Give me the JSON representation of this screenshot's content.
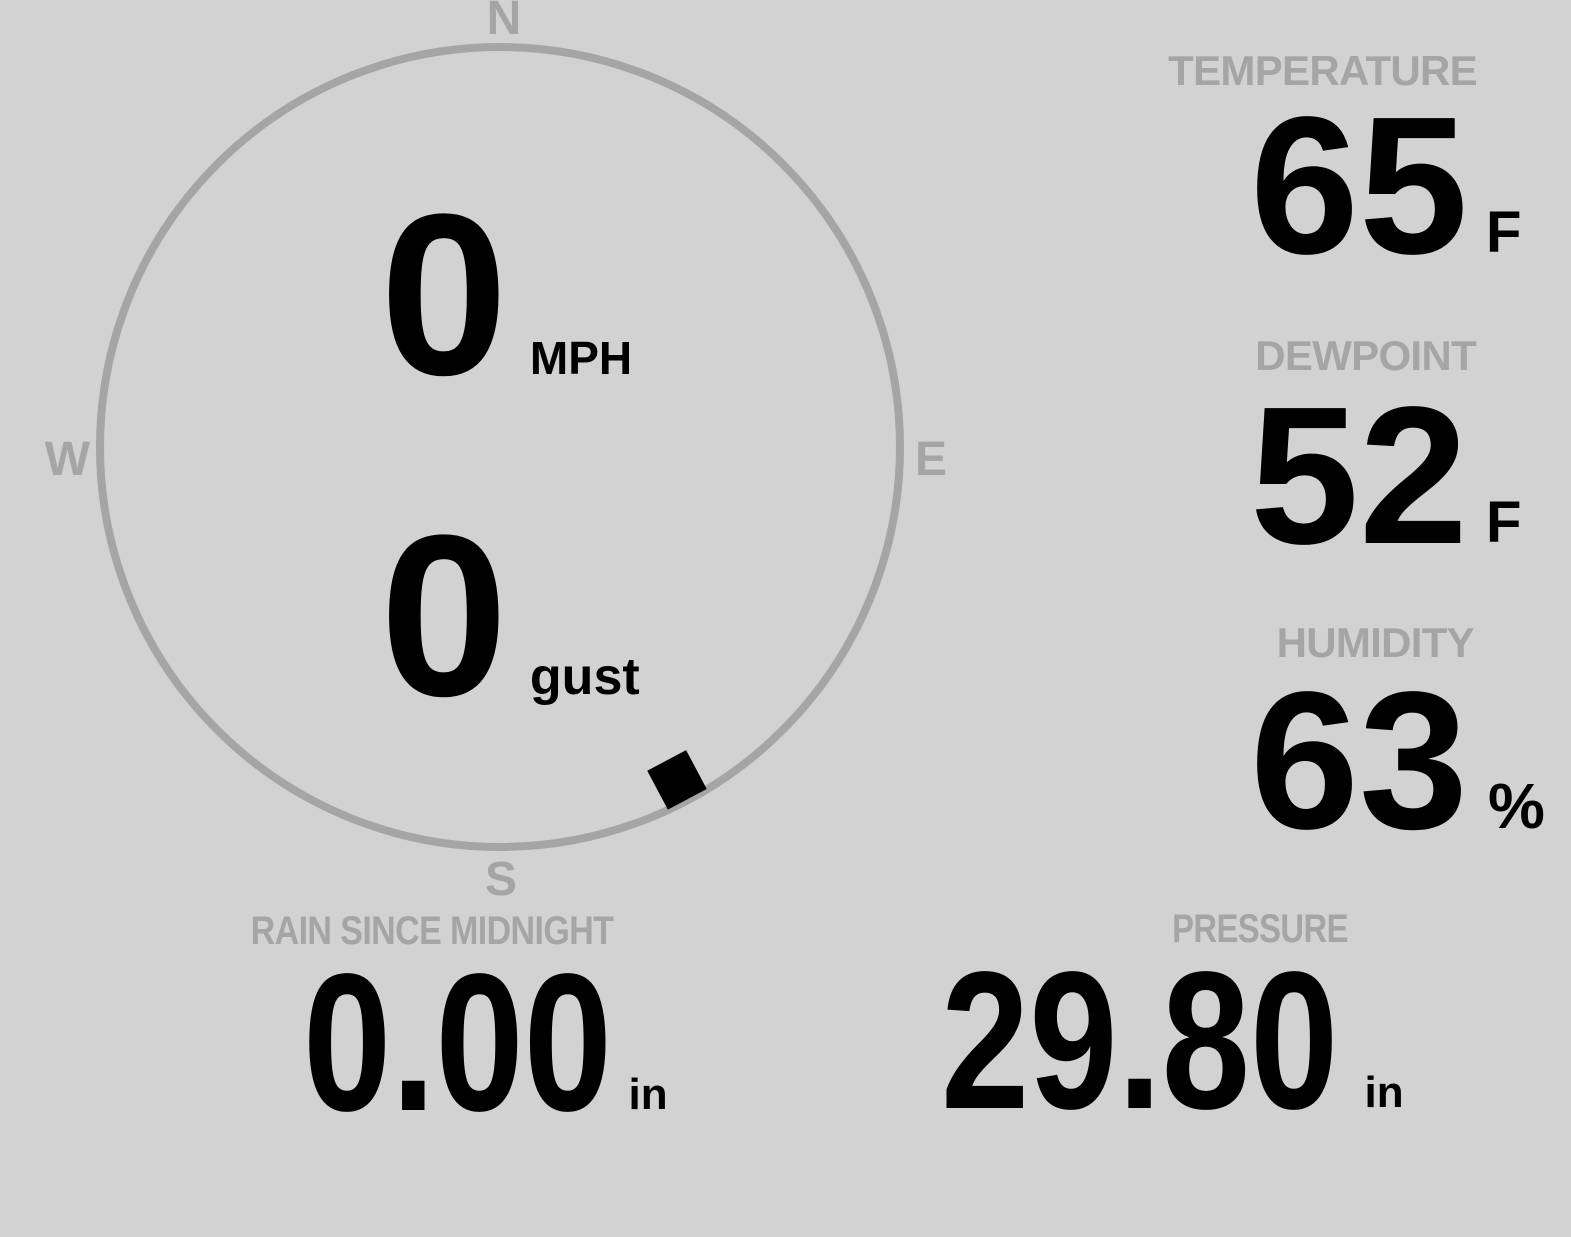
{
  "colors": {
    "background": "#d2d2d2",
    "muted": "#a5a5a5",
    "ink": "#000000"
  },
  "compass": {
    "cardinals": {
      "north": "N",
      "east": "E",
      "south": "S",
      "west": "W"
    },
    "wind_speed": {
      "value": "0",
      "unit": "MPH"
    },
    "wind_gust": {
      "value": "0",
      "unit": "gust"
    },
    "wind_direction_bearing_deg": 152
  },
  "metrics": {
    "temperature": {
      "label": "TEMPERATURE",
      "value": "65",
      "unit": "F"
    },
    "dewpoint": {
      "label": "DEWPOINT",
      "value": "52",
      "unit": "F"
    },
    "humidity": {
      "label": "HUMIDITY",
      "value": "63",
      "unit": "%"
    },
    "rain": {
      "label": "RAIN SINCE MIDNIGHT",
      "value": "0.00",
      "unit": "in"
    },
    "pressure": {
      "label": "PRESSURE",
      "value": "29.80",
      "unit": "in"
    }
  }
}
